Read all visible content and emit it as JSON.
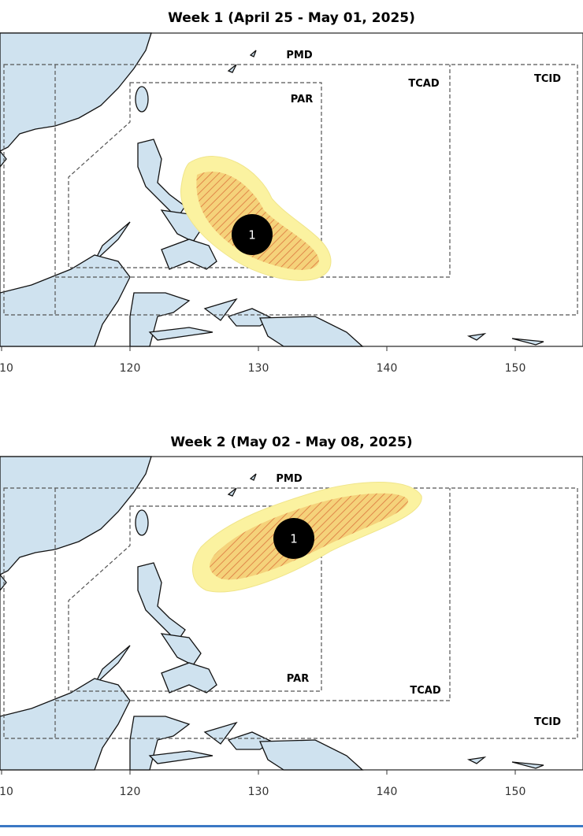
{
  "maps": [
    {
      "title": "Week 1 (April 25 - May 01, 2025)",
      "labels": {
        "pmd": "PMD",
        "tcad": "TCAD",
        "tcid": "TCID",
        "par": "PAR"
      },
      "storm": "1",
      "x_ticks": [
        "10",
        "120",
        "130",
        "140",
        "150"
      ]
    },
    {
      "title": "Week 2 (May 02 - May 08, 2025)",
      "labels": {
        "pmd": "PMD",
        "tcad": "TCAD",
        "tcid": "TCID",
        "par": "PAR"
      },
      "storm": "1",
      "x_ticks": [
        "10",
        "120",
        "130",
        "140",
        "150"
      ]
    }
  ]
}
